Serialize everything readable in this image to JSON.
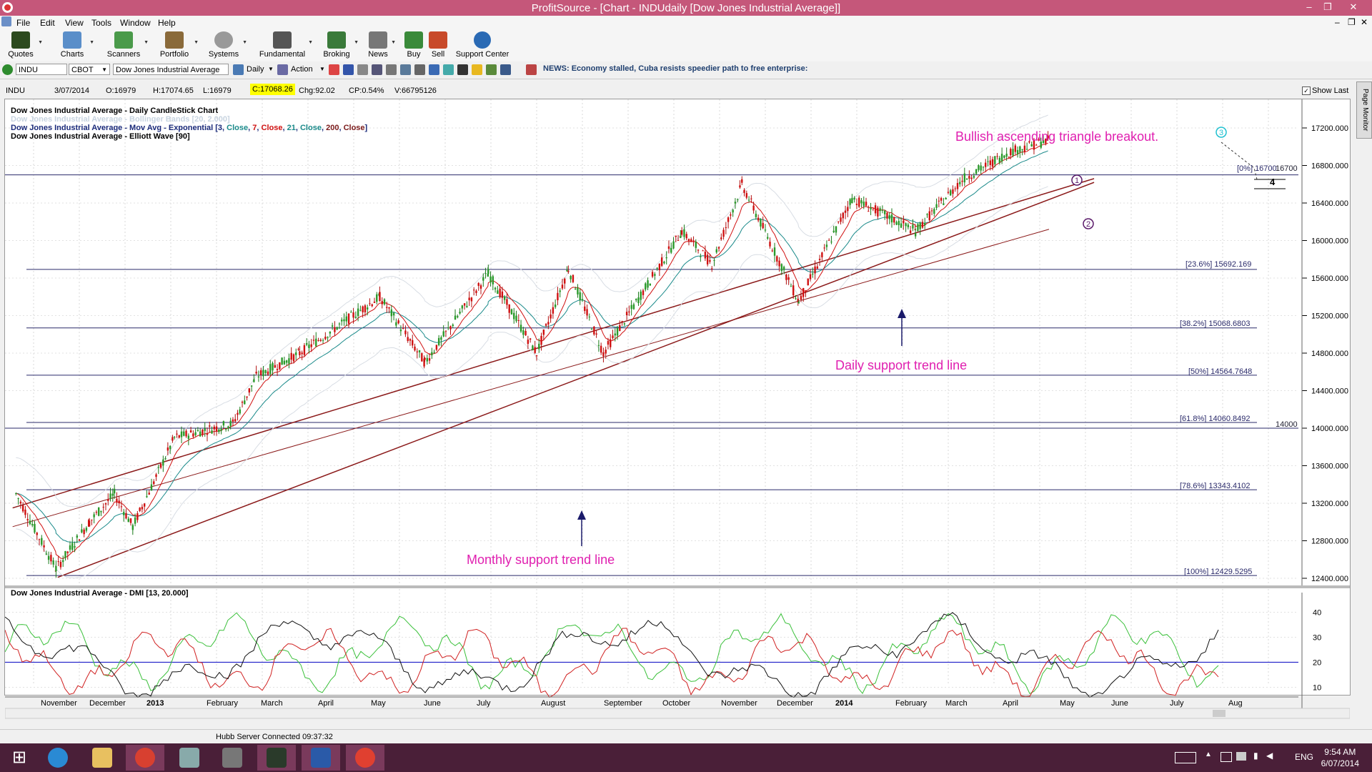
{
  "window": {
    "title": "ProfitSource - [Chart - INDUdaily [Dow Jones Industrial Average]]"
  },
  "menu": [
    "File",
    "Edit",
    "View",
    "Tools",
    "Window",
    "Help"
  ],
  "toolbar": [
    {
      "label": "Quotes",
      "icon": "quotes-icon"
    },
    {
      "label": "Charts",
      "icon": "charts-icon"
    },
    {
      "label": "Scanners",
      "icon": "scanners-icon"
    },
    {
      "label": "Portfolio",
      "icon": "portfolio-icon"
    },
    {
      "label": "Systems",
      "icon": "systems-icon"
    },
    {
      "label": "Fundamental",
      "icon": "fundamental-icon"
    },
    {
      "label": "Broking",
      "icon": "broking-icon"
    },
    {
      "label": "News",
      "icon": "news-icon"
    },
    {
      "label": "Buy",
      "icon": "buy-icon"
    },
    {
      "label": "Sell",
      "icon": "sell-icon"
    },
    {
      "label": "Support Center",
      "icon": "help-icon"
    }
  ],
  "symbolbar": {
    "symbol": "INDU",
    "exchange": "CBOT",
    "name": "Dow Jones Industrial Average",
    "period": "Daily",
    "action": "Action",
    "news": "NEWS: Economy stalled, Cuba resists speedier path to free enterprise:"
  },
  "infobar": {
    "symbol": "INDU",
    "date": "3/07/2014",
    "open": "O:16979",
    "high": "H:17074.65",
    "low": "L:16979",
    "close": "C:17068.26",
    "change": "Chg:92.02",
    "changepct": "CP:0.54%",
    "volume": "V:66795126",
    "show_last": "Show Last"
  },
  "legend": {
    "line1": "Dow Jones Industrial Average - Daily CandleStick Chart",
    "line2": "Dow Jones Industrial Average - Bollinger Bands [20, 2.000]",
    "line3_prefix": "Dow Jones Industrial Average - Mov Avg - Exponential ",
    "line3_params": [
      "[3, ",
      "Close",
      ", ",
      "7",
      ", ",
      "Close",
      ", ",
      "21",
      ", ",
      "Close",
      ", ",
      "200",
      ", ",
      "Close",
      "]"
    ],
    "line4": "Dow Jones Industrial Average - Elliott Wave [90]",
    "dmi_title": "Dow Jones Industrial Average - DMI [13, 20.000]"
  },
  "annotations": {
    "breakout": "Bullish ascending triangle breakout.",
    "daily": "Daily support trend line",
    "monthly": "Monthly support trend line"
  },
  "wave_labels": [
    "1",
    "2",
    "3",
    "4"
  ],
  "levels": {
    "right_16700": "16700",
    "right_14000": "14000"
  },
  "fibonacci": [
    {
      "label": "[0%] 16700",
      "value": 16700
    },
    {
      "label": "[23.6%] 15692.169",
      "value": 15692.169
    },
    {
      "label": "[38.2%] 15068.6803",
      "value": 15068.6803
    },
    {
      "label": "[50%] 14564.7648",
      "value": 14564.7648
    },
    {
      "label": "[61.8%] 14060.8492",
      "value": 14060.8492
    },
    {
      "label": "[78.6%] 13343.4102",
      "value": 13343.4102
    },
    {
      "label": "[100%] 12429.5295",
      "value": 12429.5295
    }
  ],
  "chart_data": {
    "type": "candlestick",
    "title": "Dow Jones Industrial Average - Daily CandleStick Chart",
    "ylim": [
      12400,
      17400
    ],
    "yticks": [
      "17200.000",
      "16800.000",
      "16400.000",
      "16000.000",
      "15600.000",
      "15200.000",
      "14800.000",
      "14400.000",
      "14000.000",
      "13600.000",
      "13200.000",
      "12800.000",
      "12400.000"
    ],
    "xticks": [
      "November",
      "December",
      "2013",
      "February",
      "March",
      "April",
      "May",
      "June",
      "July",
      "August",
      "September",
      "October",
      "November",
      "December",
      "2014",
      "February",
      "March",
      "April",
      "May",
      "June",
      "July",
      "Aug"
    ],
    "approx_close_path": [
      [
        "2012-10-22",
        13300
      ],
      [
        "2012-11-15",
        12500
      ],
      [
        "2012-12-05",
        13000
      ],
      [
        "2012-12-20",
        13300
      ],
      [
        "2012-12-31",
        12950
      ],
      [
        "2013-01-25",
        13900
      ],
      [
        "2013-03-01",
        14050
      ],
      [
        "2013-03-15",
        14550
      ],
      [
        "2013-04-10",
        14800
      ],
      [
        "2013-05-28",
        15400
      ],
      [
        "2013-06-24",
        14700
      ],
      [
        "2013-08-01",
        15650
      ],
      [
        "2013-08-30",
        14800
      ],
      [
        "2013-09-18",
        15700
      ],
      [
        "2013-10-09",
        14800
      ],
      [
        "2013-11-25",
        16100
      ],
      [
        "2013-12-13",
        15750
      ],
      [
        "2013-12-31",
        16600
      ],
      [
        "2014-02-03",
        15350
      ],
      [
        "2014-03-07",
        16450
      ],
      [
        "2014-04-14",
        16100
      ],
      [
        "2014-05-12",
        16650
      ],
      [
        "2014-06-10",
        16950
      ],
      [
        "2014-07-03",
        17068.26
      ]
    ],
    "dmi": {
      "title": "Dow Jones Industrial Average - DMI [13, 20.000]",
      "ylim": [
        5,
        45
      ],
      "yticks": [
        "40",
        "30",
        "20",
        "10"
      ],
      "threshold": 20,
      "series": [
        "+DI",
        "-DI",
        "ADX"
      ]
    }
  },
  "status": {
    "server": "Hubb Server Connected 09:37:32"
  },
  "taskbar": {
    "lang": "ENG",
    "time": "9:54 AM",
    "date": "6/07/2014"
  },
  "side": {
    "page_monitor": "Page Monitor"
  }
}
